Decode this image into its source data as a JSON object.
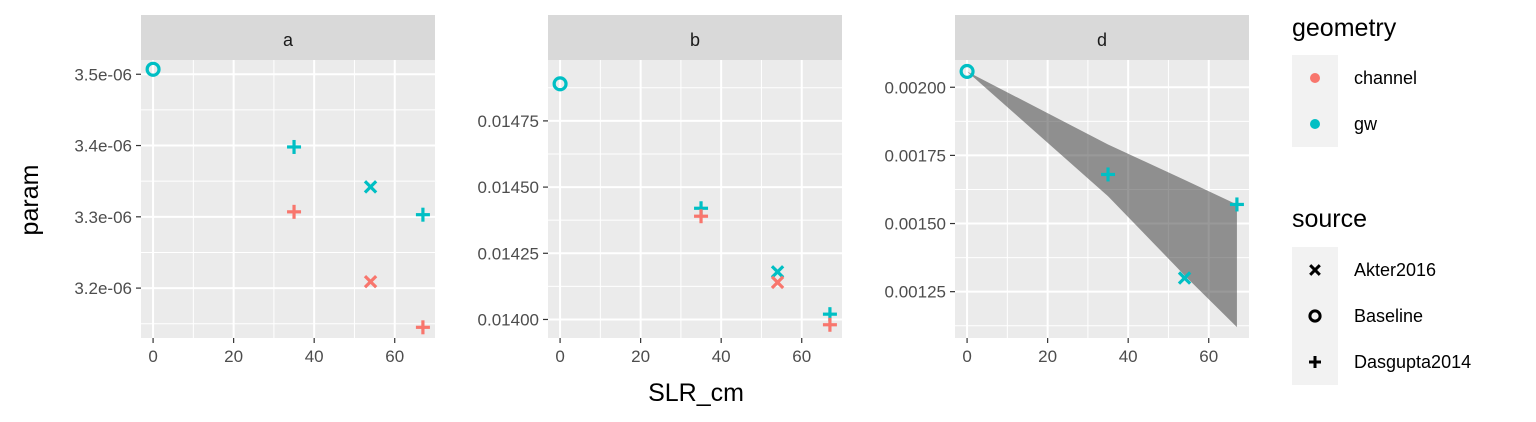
{
  "chart_data": {
    "type": "scatter",
    "xlabel": "SLR_cm",
    "ylabel": "param",
    "colors": {
      "channel": "#F8766D",
      "gw": "#00BFC4"
    },
    "panels": [
      {
        "strip": "a",
        "xlim": [
          -3,
          70
        ],
        "ylim": [
          3.13e-06,
          3.52e-06
        ],
        "xticks": [
          0,
          20,
          40,
          60
        ],
        "xtick_labels": [
          "0",
          "20",
          "40",
          "60"
        ],
        "yticks": [
          3.2e-06,
          3.3e-06,
          3.4e-06,
          3.5e-06
        ],
        "ytick_labels": [
          "3.2e-06",
          "3.3e-06",
          "3.4e-06",
          "3.5e-06"
        ],
        "points": [
          {
            "x": 0,
            "y": 3.507e-06,
            "geometry": "gw",
            "source": "Baseline"
          },
          {
            "x": 35,
            "y": 3.398e-06,
            "geometry": "gw",
            "source": "Dasgupta2014"
          },
          {
            "x": 35,
            "y": 3.307e-06,
            "geometry": "channel",
            "source": "Dasgupta2014"
          },
          {
            "x": 54,
            "y": 3.342e-06,
            "geometry": "gw",
            "source": "Akter2016"
          },
          {
            "x": 54,
            "y": 3.209e-06,
            "geometry": "channel",
            "source": "Akter2016"
          },
          {
            "x": 67,
            "y": 3.303e-06,
            "geometry": "gw",
            "source": "Dasgupta2014"
          },
          {
            "x": 67,
            "y": 3.145e-06,
            "geometry": "channel",
            "source": "Dasgupta2014"
          }
        ]
      },
      {
        "strip": "b",
        "xlim": [
          -3,
          70
        ],
        "ylim": [
          0.01393,
          0.01498
        ],
        "xticks": [
          0,
          20,
          40,
          60
        ],
        "xtick_labels": [
          "0",
          "20",
          "40",
          "60"
        ],
        "yticks": [
          0.014,
          0.01425,
          0.0145,
          0.01475
        ],
        "ytick_labels": [
          "0.01400",
          "0.01425",
          "0.01450",
          "0.01475"
        ],
        "points": [
          {
            "x": 0,
            "y": 0.01489,
            "geometry": "gw",
            "source": "Baseline"
          },
          {
            "x": 35,
            "y": 0.01442,
            "geometry": "gw",
            "source": "Dasgupta2014"
          },
          {
            "x": 35,
            "y": 0.01439,
            "geometry": "channel",
            "source": "Dasgupta2014"
          },
          {
            "x": 54,
            "y": 0.01418,
            "geometry": "gw",
            "source": "Akter2016"
          },
          {
            "x": 54,
            "y": 0.01414,
            "geometry": "channel",
            "source": "Akter2016"
          },
          {
            "x": 67,
            "y": 0.01402,
            "geometry": "gw",
            "source": "Dasgupta2014"
          },
          {
            "x": 67,
            "y": 0.01398,
            "geometry": "channel",
            "source": "Dasgupta2014"
          }
        ]
      },
      {
        "strip": "d",
        "xlim": [
          -3,
          70
        ],
        "ylim": [
          0.00108,
          0.0021
        ],
        "xticks": [
          0,
          20,
          40,
          60
        ],
        "xtick_labels": [
          "0",
          "20",
          "40",
          "60"
        ],
        "yticks": [
          0.00125,
          0.0015,
          0.00175,
          0.002
        ],
        "ytick_labels": [
          "0.00125",
          "0.00150",
          "0.00175",
          "0.00200"
        ],
        "ribbon": {
          "x": [
            0,
            35,
            54,
            67
          ],
          "ymin": [
            0.002058,
            0.0016,
            0.00131,
            0.00112
          ],
          "ymax": [
            0.002058,
            0.00179,
            0.00166,
            0.00157
          ]
        },
        "points": [
          {
            "x": 0,
            "y": 0.002058,
            "geometry": "gw",
            "source": "Baseline"
          },
          {
            "x": 35,
            "y": 0.00168,
            "geometry": "gw",
            "source": "Dasgupta2014"
          },
          {
            "x": 54,
            "y": 0.0013,
            "geometry": "gw",
            "source": "Akter2016"
          },
          {
            "x": 67,
            "y": 0.00157,
            "geometry": "gw",
            "source": "Dasgupta2014"
          }
        ]
      }
    ],
    "legends": [
      {
        "title": "geometry",
        "type": "color",
        "items": [
          {
            "label": "channel",
            "key": "channel"
          },
          {
            "label": "gw",
            "key": "gw"
          }
        ]
      },
      {
        "title": "source",
        "type": "shape",
        "items": [
          {
            "label": "Akter2016",
            "shape": "x"
          },
          {
            "label": "Baseline",
            "shape": "circle"
          },
          {
            "label": "Dasgupta2014",
            "shape": "plus"
          }
        ]
      }
    ]
  }
}
